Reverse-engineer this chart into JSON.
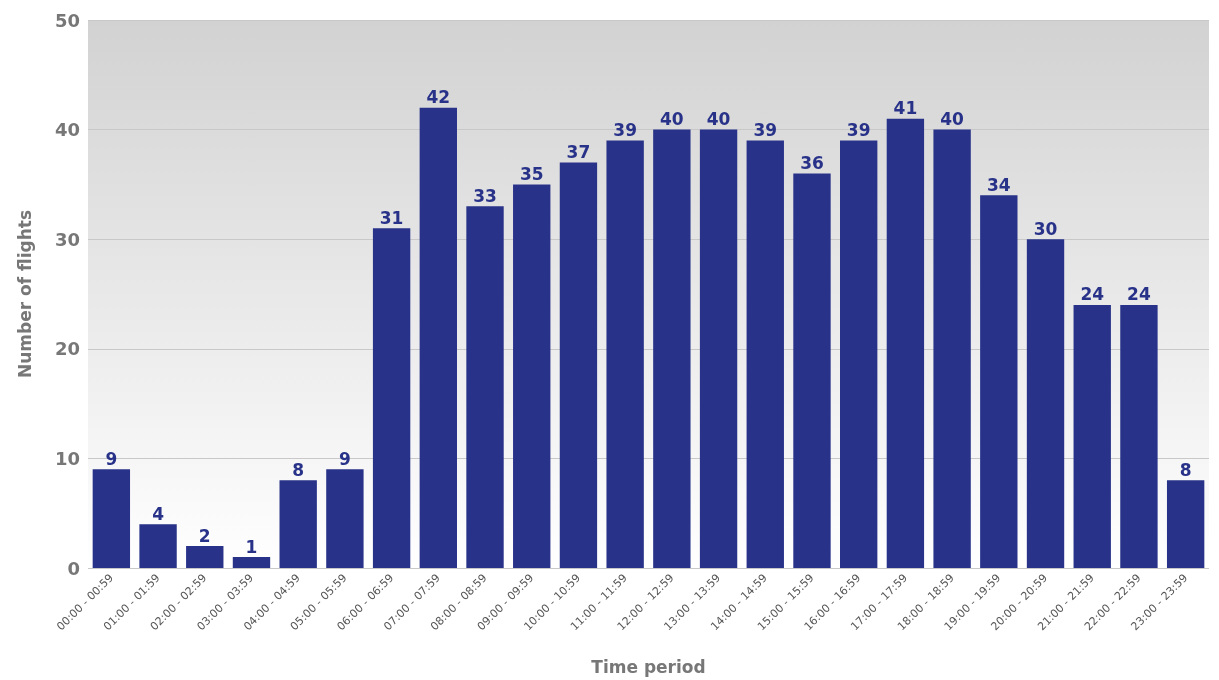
{
  "chart_data": {
    "type": "bar",
    "xlabel": "Time period",
    "ylabel": "Number of flights",
    "categories": [
      "00:00 - 00:59",
      "01:00 - 01:59",
      "02:00 - 02:59",
      "03:00 - 03:59",
      "04:00 - 04:59",
      "05:00 - 05:59",
      "06:00 - 06:59",
      "07:00 - 07:59",
      "08:00 - 08:59",
      "09:00 - 09:59",
      "10:00 - 10:59",
      "11:00 - 11:59",
      "12:00 - 12:59",
      "13:00 - 13:59",
      "14:00 - 14:59",
      "15:00 - 15:59",
      "16:00 - 16:59",
      "17:00 - 17:59",
      "18:00 - 18:59",
      "19:00 - 19:59",
      "20:00 - 20:59",
      "21:00 - 21:59",
      "22:00 - 22:59",
      "23:00 - 23:59"
    ],
    "values": [
      9,
      4,
      2,
      1,
      8,
      9,
      31,
      42,
      33,
      35,
      37,
      39,
      40,
      40,
      39,
      36,
      39,
      41,
      40,
      34,
      30,
      24,
      24,
      8
    ],
    "color": "#283289",
    "ylim": [
      0,
      50
    ],
    "yticks": [
      0,
      10,
      20,
      30,
      40,
      50
    ],
    "grid": "y",
    "data_labels": true
  }
}
